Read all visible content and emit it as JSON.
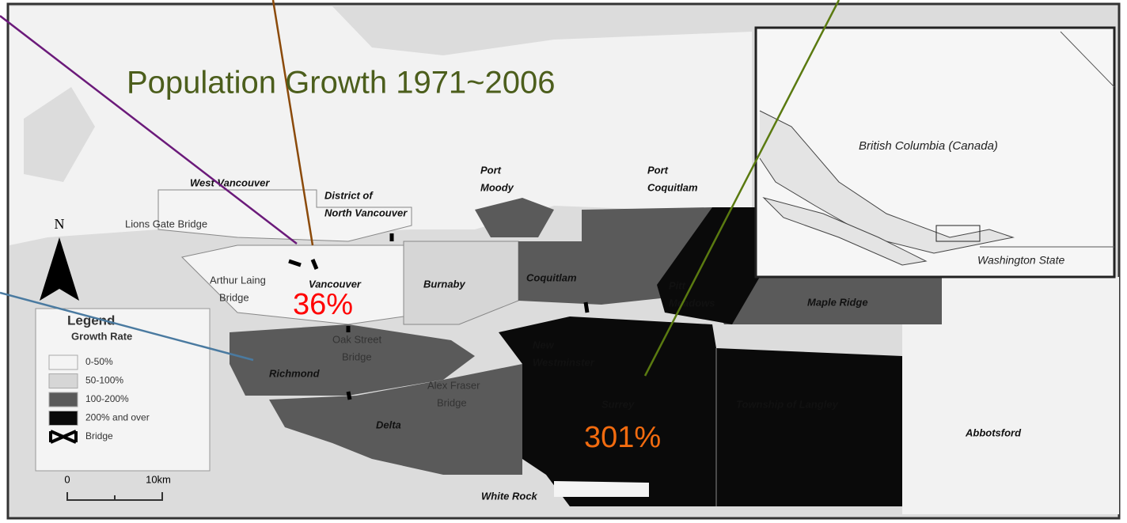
{
  "title": "Population Growth 1971~2006",
  "annotations": [
    {
      "text": "36%",
      "color": "#ff0000"
    },
    {
      "text": "301%",
      "color": "#f26b0f"
    }
  ],
  "places": [
    [
      "West Vancouver"
    ],
    [
      "District of",
      "North Vancouver"
    ],
    [
      "Port",
      "Moody"
    ],
    [
      "Port",
      "Coquitlam"
    ],
    [
      "Lions Gate Bridge"
    ],
    [
      "Arthur Laing",
      "Bridge"
    ],
    [
      "Vancouver"
    ],
    [
      "Burnaby"
    ],
    [
      "Coquitlam"
    ],
    [
      "Pitt",
      "Meadows"
    ],
    [
      "Maple Ridge"
    ],
    [
      "Oak Street",
      "Bridge"
    ],
    [
      "New",
      "Westminster"
    ],
    [
      "Richmond"
    ],
    [
      "Alex Fraser",
      "Bridge"
    ],
    [
      "Surrey"
    ],
    [
      "Township of Langley"
    ],
    [
      "Delta"
    ],
    [
      "Abbotsford"
    ],
    [
      "White Rock"
    ]
  ],
  "inset": {
    "region": "British Columbia (Canada)",
    "neighbor": "Washington State"
  },
  "north": "N",
  "legend": {
    "title": "Legend",
    "subtitle": "Growth Rate",
    "items": [
      {
        "label": "0-50%",
        "color": "#f4f4f4"
      },
      {
        "label": "50-100%",
        "color": "#d6d6d6"
      },
      {
        "label": "100-200%",
        "color": "#5a5a5a"
      },
      {
        "label": "200% and over",
        "color": "#0a0a0a"
      },
      {
        "label": "Bridge"
      }
    ]
  },
  "scale": {
    "start": "0",
    "end": "10km"
  }
}
